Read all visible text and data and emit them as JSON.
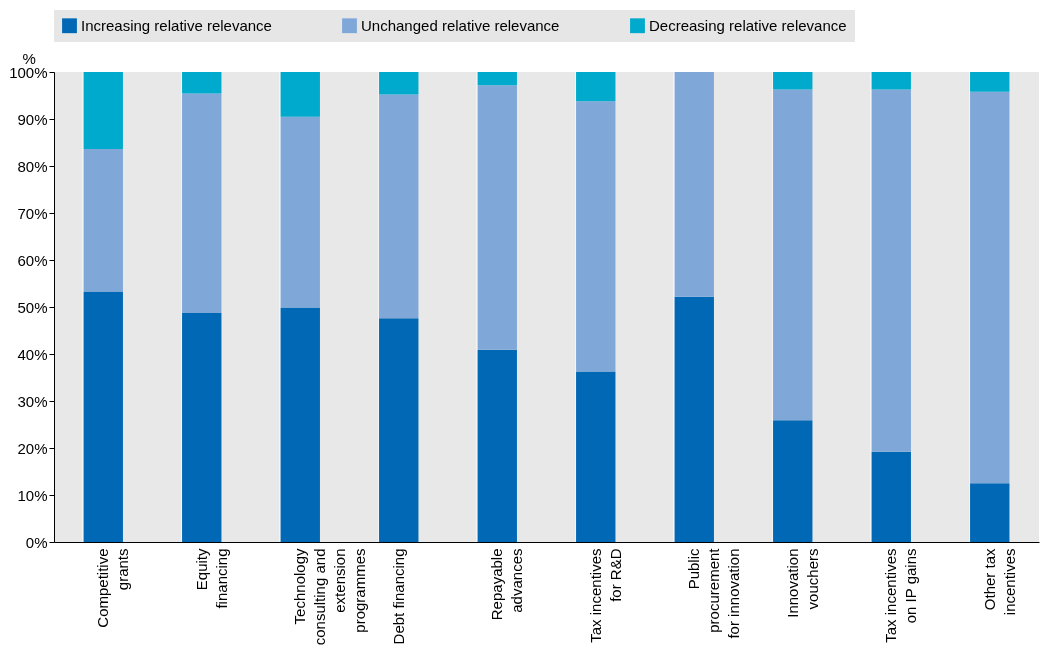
{
  "chart_data": {
    "type": "bar",
    "stacked": true,
    "ylabel": "%",
    "categories": [
      "Competitive grants",
      "Equity financing",
      "Technology consulting and extension programmes",
      "Debt financing",
      "Repayable advances",
      "Tax incentives for R&D",
      "Public procurement for innovation",
      "Innovation vouchers",
      "Tax incentives on IP gains",
      "Other tax incentives"
    ],
    "series": [
      {
        "name": "Increasing relative relevance",
        "color": "#0068b5",
        "values": [
          53.3,
          48.7,
          49.9,
          47.6,
          40.9,
          36.3,
          52.2,
          25.9,
          19.2,
          12.5
        ]
      },
      {
        "name": "Unchanged relative relevance",
        "color": "#7fa8d9",
        "values": [
          30.3,
          46.7,
          40.6,
          47.6,
          56.3,
          57.5,
          47.8,
          70.4,
          77.1,
          83.3
        ]
      },
      {
        "name": "Decreasing relative relevance",
        "color": "#00aacc",
        "values": [
          16.4,
          4.6,
          9.5,
          4.8,
          2.8,
          6.2,
          0,
          3.7,
          3.7,
          4.2
        ]
      }
    ],
    "ylim": [
      0,
      100
    ],
    "yticks": [
      {
        "value": 0,
        "label": "0%"
      },
      {
        "value": 10,
        "label": "10%"
      },
      {
        "value": 20,
        "label": "20%"
      },
      {
        "value": 30,
        "label": "30%"
      },
      {
        "value": 40,
        "label": "40%"
      },
      {
        "value": 50,
        "label": "50%"
      },
      {
        "value": 60,
        "label": "60%"
      },
      {
        "value": 70,
        "label": "70%"
      },
      {
        "value": 80,
        "label": "80%"
      },
      {
        "value": 90,
        "label": "90%"
      },
      {
        "value": 100,
        "label": "100%"
      }
    ],
    "grid": "x",
    "legend": "top"
  }
}
